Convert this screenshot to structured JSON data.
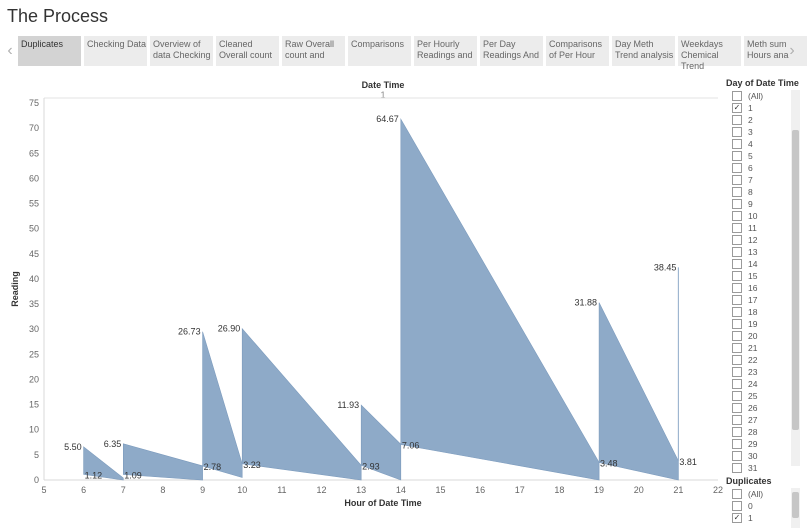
{
  "page": {
    "title": "The Process"
  },
  "tabs": [
    {
      "label": "Duplicates",
      "active": true
    },
    {
      "label": "Checking Data",
      "active": false
    },
    {
      "label": "Overview of data Checking",
      "active": false
    },
    {
      "label": "Cleaned Overall count",
      "active": false
    },
    {
      "label": "Raw Overall count and",
      "active": false
    },
    {
      "label": "Comparisons",
      "active": false
    },
    {
      "label": "Per Hourly Readings and",
      "active": false
    },
    {
      "label": "Per Day Readings And",
      "active": false
    },
    {
      "label": "Comparisons of Per Hour",
      "active": false
    },
    {
      "label": "Day Meth Trend analysis",
      "active": false
    },
    {
      "label": "Weekdays Chemical Trend",
      "active": false
    },
    {
      "label": "Meth sum Hours ana",
      "active": false
    }
  ],
  "nav": {
    "prev_icon": "‹",
    "next_icon": "›"
  },
  "filters": {
    "day": {
      "title": "Day of Date Time",
      "items": [
        "(All)",
        "1",
        "2",
        "3",
        "4",
        "5",
        "6",
        "7",
        "8",
        "9",
        "10",
        "11",
        "12",
        "13",
        "14",
        "15",
        "16",
        "17",
        "18",
        "19",
        "20",
        "21",
        "22",
        "23",
        "24",
        "25",
        "26",
        "27",
        "28",
        "29",
        "30",
        "31"
      ],
      "checked": [
        "1"
      ]
    },
    "duplicates": {
      "title": "Duplicates",
      "items": [
        "(All)",
        "0",
        "1"
      ],
      "checked": [
        "1"
      ]
    }
  },
  "chart_data": {
    "type": "area",
    "column_header": "Date Time",
    "column_value": "1",
    "xlabel": "Hour of Date Time",
    "ylabel": "Reading",
    "xlim": [
      5,
      22
    ],
    "ylim": [
      0,
      76
    ],
    "x_ticks": [
      5,
      6,
      7,
      8,
      9,
      10,
      11,
      12,
      13,
      14,
      15,
      16,
      17,
      18,
      19,
      20,
      21,
      22
    ],
    "y_ticks": [
      0,
      5,
      10,
      15,
      20,
      25,
      30,
      35,
      40,
      45,
      50,
      55,
      60,
      65,
      70,
      75
    ],
    "grid": false,
    "color": "#8eaac8",
    "segments": [
      {
        "x1": 6,
        "x2": 7,
        "top_start": 6.6,
        "top_end": 0.4,
        "bottom_start": 1.12,
        "bottom_end": 0.0,
        "top_label": "5.50",
        "bottom_label": "1.12"
      },
      {
        "x1": 7,
        "x2": 9,
        "top_start": 7.2,
        "top_end": 2.8,
        "bottom_start": 1.09,
        "bottom_end": 0.0,
        "top_label": "6.35",
        "bottom_label": "1.09"
      },
      {
        "x1": 9,
        "x2": 10,
        "top_start": 29.5,
        "top_end": 3.2,
        "bottom_start": 2.78,
        "bottom_end": 0.5,
        "top_label": "26.73",
        "bottom_label": "2.78"
      },
      {
        "x1": 10,
        "x2": 13,
        "top_start": 30.1,
        "top_end": 2.9,
        "bottom_start": 3.23,
        "bottom_end": 0.0,
        "top_label": "26.90",
        "bottom_label": "3.23"
      },
      {
        "x1": 13,
        "x2": 14,
        "top_start": 14.9,
        "top_end": 7.1,
        "bottom_start": 2.93,
        "bottom_end": 0.0,
        "top_label": "11.93",
        "bottom_label": "2.93"
      },
      {
        "x1": 14,
        "x2": 19,
        "top_start": 71.8,
        "top_end": 3.5,
        "bottom_start": 7.06,
        "bottom_end": 0.0,
        "top_label": "64.67",
        "bottom_label": "7.06"
      },
      {
        "x1": 19,
        "x2": 21,
        "top_start": 35.3,
        "top_end": 3.8,
        "bottom_start": 3.48,
        "bottom_end": 0.0,
        "top_label": "31.88",
        "bottom_label": "3.48"
      },
      {
        "x1": 21,
        "x2": 21,
        "top_start": 42.3,
        "top_end": 3.8,
        "bottom_start": 3.81,
        "bottom_end": 3.81,
        "top_label": "38.45",
        "bottom_label": "3.81"
      }
    ]
  }
}
